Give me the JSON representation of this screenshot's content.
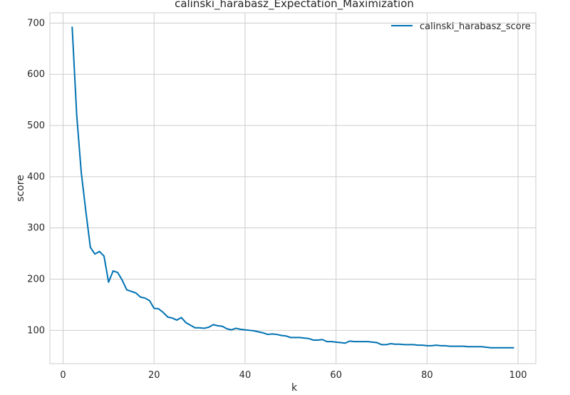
{
  "chart_data": {
    "type": "line",
    "title": "calinski_harabasz_Expectation_Maximization",
    "xlabel": "k",
    "ylabel": "score",
    "xlim": [
      -2.9,
      103.9
    ],
    "ylim": [
      35,
      720
    ],
    "xticks": [
      0,
      20,
      40,
      60,
      80,
      100
    ],
    "yticks": [
      100,
      200,
      300,
      400,
      500,
      600,
      700
    ],
    "xtick_labels": [
      "0",
      "20",
      "40",
      "60",
      "80",
      "100"
    ],
    "ytick_labels": [
      "100",
      "200",
      "300",
      "400",
      "500",
      "600",
      "700"
    ],
    "grid": true,
    "legend_position": "top-right",
    "series": [
      {
        "name": "calinski_harabasz_score",
        "color": "#0072b2",
        "x": [
          2,
          3,
          4,
          5,
          6,
          7,
          8,
          9,
          10,
          11,
          12,
          13,
          14,
          15,
          16,
          17,
          18,
          19,
          20,
          21,
          22,
          23,
          24,
          25,
          26,
          27,
          28,
          29,
          30,
          31,
          32,
          33,
          34,
          35,
          36,
          37,
          38,
          39,
          40,
          41,
          42,
          43,
          44,
          45,
          46,
          47,
          48,
          49,
          50,
          51,
          52,
          53,
          54,
          55,
          56,
          57,
          58,
          59,
          60,
          61,
          62,
          63,
          64,
          65,
          66,
          67,
          68,
          69,
          70,
          71,
          72,
          73,
          74,
          75,
          76,
          77,
          78,
          79,
          80,
          81,
          82,
          83,
          84,
          85,
          86,
          87,
          88,
          89,
          90,
          91,
          92,
          93,
          94,
          95,
          96,
          97,
          98,
          99
        ],
        "y": [
          692,
          520,
          408,
          333,
          262,
          249,
          254,
          245,
          194,
          216,
          213,
          198,
          179,
          176,
          173,
          165,
          163,
          158,
          143,
          142,
          135,
          126,
          124,
          120,
          125,
          115,
          110,
          105,
          105,
          104,
          106,
          111,
          109,
          108,
          103,
          101,
          104,
          102,
          101,
          100,
          99,
          97,
          95,
          92,
          93,
          92,
          90,
          89,
          86,
          86,
          86,
          85,
          84,
          81,
          81,
          82,
          78,
          78,
          77,
          76,
          75,
          79,
          78,
          78,
          78,
          78,
          77,
          76,
          72,
          72,
          74,
          73,
          73,
          72,
          72,
          72,
          71,
          71,
          70,
          70,
          71,
          70,
          70,
          69,
          69,
          69,
          69,
          68,
          68,
          68,
          68,
          67,
          66,
          66,
          66,
          66,
          66,
          66
        ]
      }
    ]
  }
}
